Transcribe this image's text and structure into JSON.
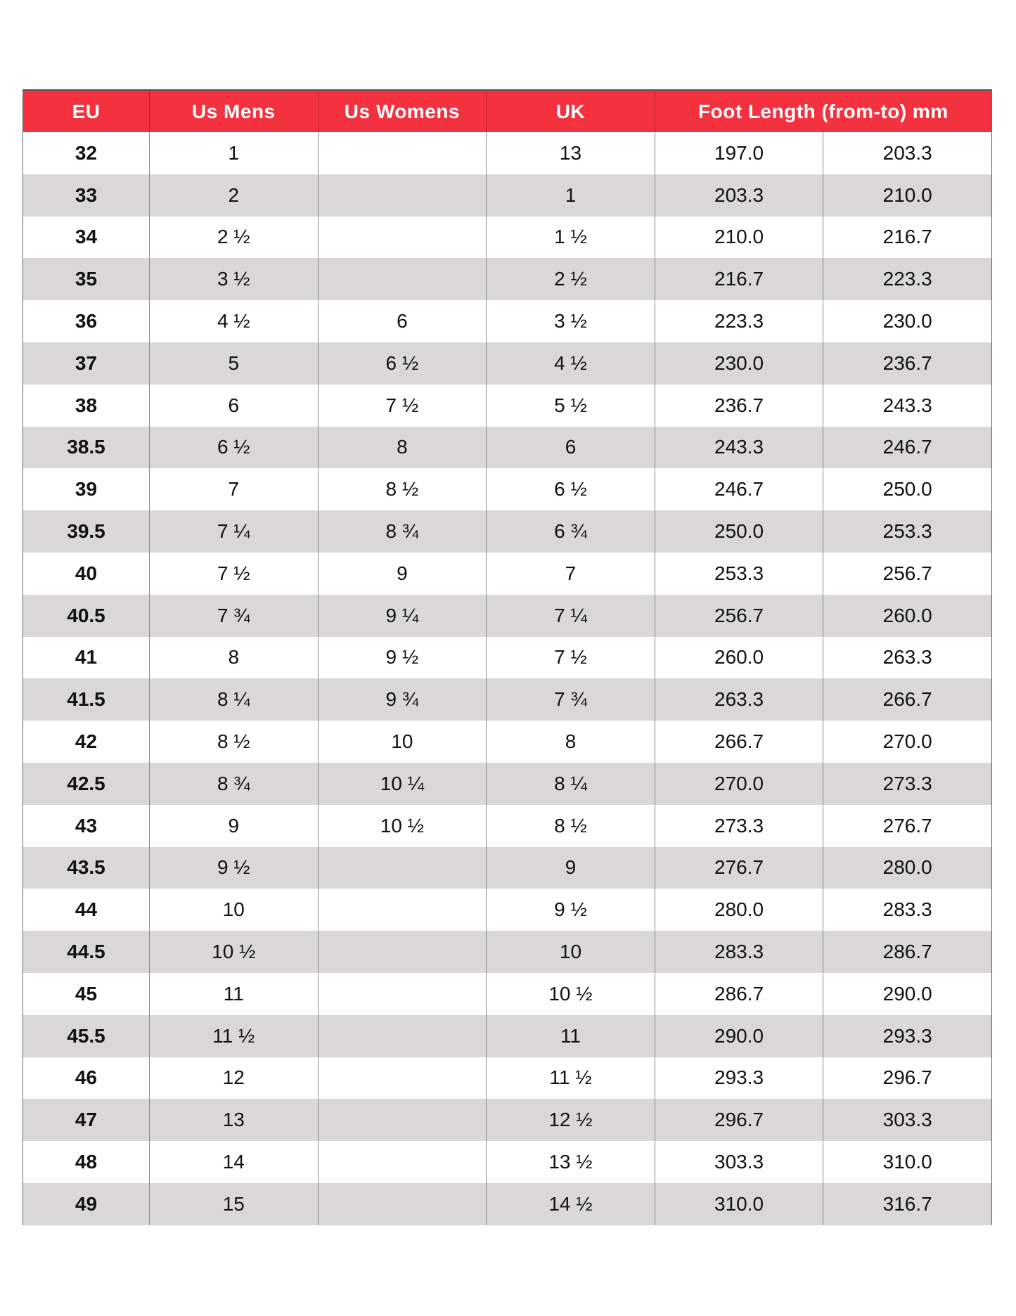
{
  "header": {
    "eu": "EU",
    "us_mens": "Us Mens",
    "us_womens": "Us Womens",
    "uk": "UK",
    "foot_length": "Foot Length (from-to) mm"
  },
  "colors": {
    "header_bg": "#f4313f",
    "alt_row_bg": "#d9d8d7"
  },
  "rows": [
    [
      "32",
      "1",
      "",
      "13",
      "197.0",
      "203.3"
    ],
    [
      "33",
      "2",
      "",
      "1",
      "203.3",
      "210.0"
    ],
    [
      "34",
      "2 ½",
      "",
      "1 ½",
      "210.0",
      "216.7"
    ],
    [
      "35",
      "3 ½",
      "",
      "2 ½",
      "216.7",
      "223.3"
    ],
    [
      "36",
      "4 ½",
      "6",
      "3 ½",
      "223.3",
      "230.0"
    ],
    [
      "37",
      "5",
      "6 ½",
      "4 ½",
      "230.0",
      "236.7"
    ],
    [
      "38",
      "6",
      "7 ½",
      "5 ½",
      "236.7",
      "243.3"
    ],
    [
      "38.5",
      "6 ½",
      "8",
      "6",
      "243.3",
      "246.7"
    ],
    [
      "39",
      "7",
      "8 ½",
      "6 ½",
      "246.7",
      "250.0"
    ],
    [
      "39.5",
      "7 ¼",
      "8 ¾",
      "6 ¾",
      "250.0",
      "253.3"
    ],
    [
      "40",
      "7 ½",
      "9",
      "7",
      "253.3",
      "256.7"
    ],
    [
      "40.5",
      "7 ¾",
      "9 ¼",
      "7 ¼",
      "256.7",
      "260.0"
    ],
    [
      "41",
      "8",
      "9 ½",
      "7 ½",
      "260.0",
      "263.3"
    ],
    [
      "41.5",
      "8 ¼",
      "9 ¾",
      "7 ¾",
      "263.3",
      "266.7"
    ],
    [
      "42",
      "8 ½",
      "10",
      "8",
      "266.7",
      "270.0"
    ],
    [
      "42.5",
      "8 ¾",
      "10 ¼",
      "8 ¼",
      "270.0",
      "273.3"
    ],
    [
      "43",
      "9",
      "10 ½",
      "8 ½",
      "273.3",
      "276.7"
    ],
    [
      "43.5",
      "9 ½",
      "",
      "9",
      "276.7",
      "280.0"
    ],
    [
      "44",
      "10",
      "",
      "9 ½",
      "280.0",
      "283.3"
    ],
    [
      "44.5",
      "10 ½",
      "",
      "10",
      "283.3",
      "286.7"
    ],
    [
      "45",
      "11",
      "",
      "10 ½",
      "286.7",
      "290.0"
    ],
    [
      "45.5",
      "11 ½",
      "",
      "11",
      "290.0",
      "293.3"
    ],
    [
      "46",
      "12",
      "",
      "11 ½",
      "293.3",
      "296.7"
    ],
    [
      "47",
      "13",
      "",
      "12 ½",
      "296.7",
      "303.3"
    ],
    [
      "48",
      "14",
      "",
      "13 ½",
      "303.3",
      "310.0"
    ],
    [
      "49",
      "15",
      "",
      "14 ½",
      "310.0",
      "316.7"
    ]
  ]
}
